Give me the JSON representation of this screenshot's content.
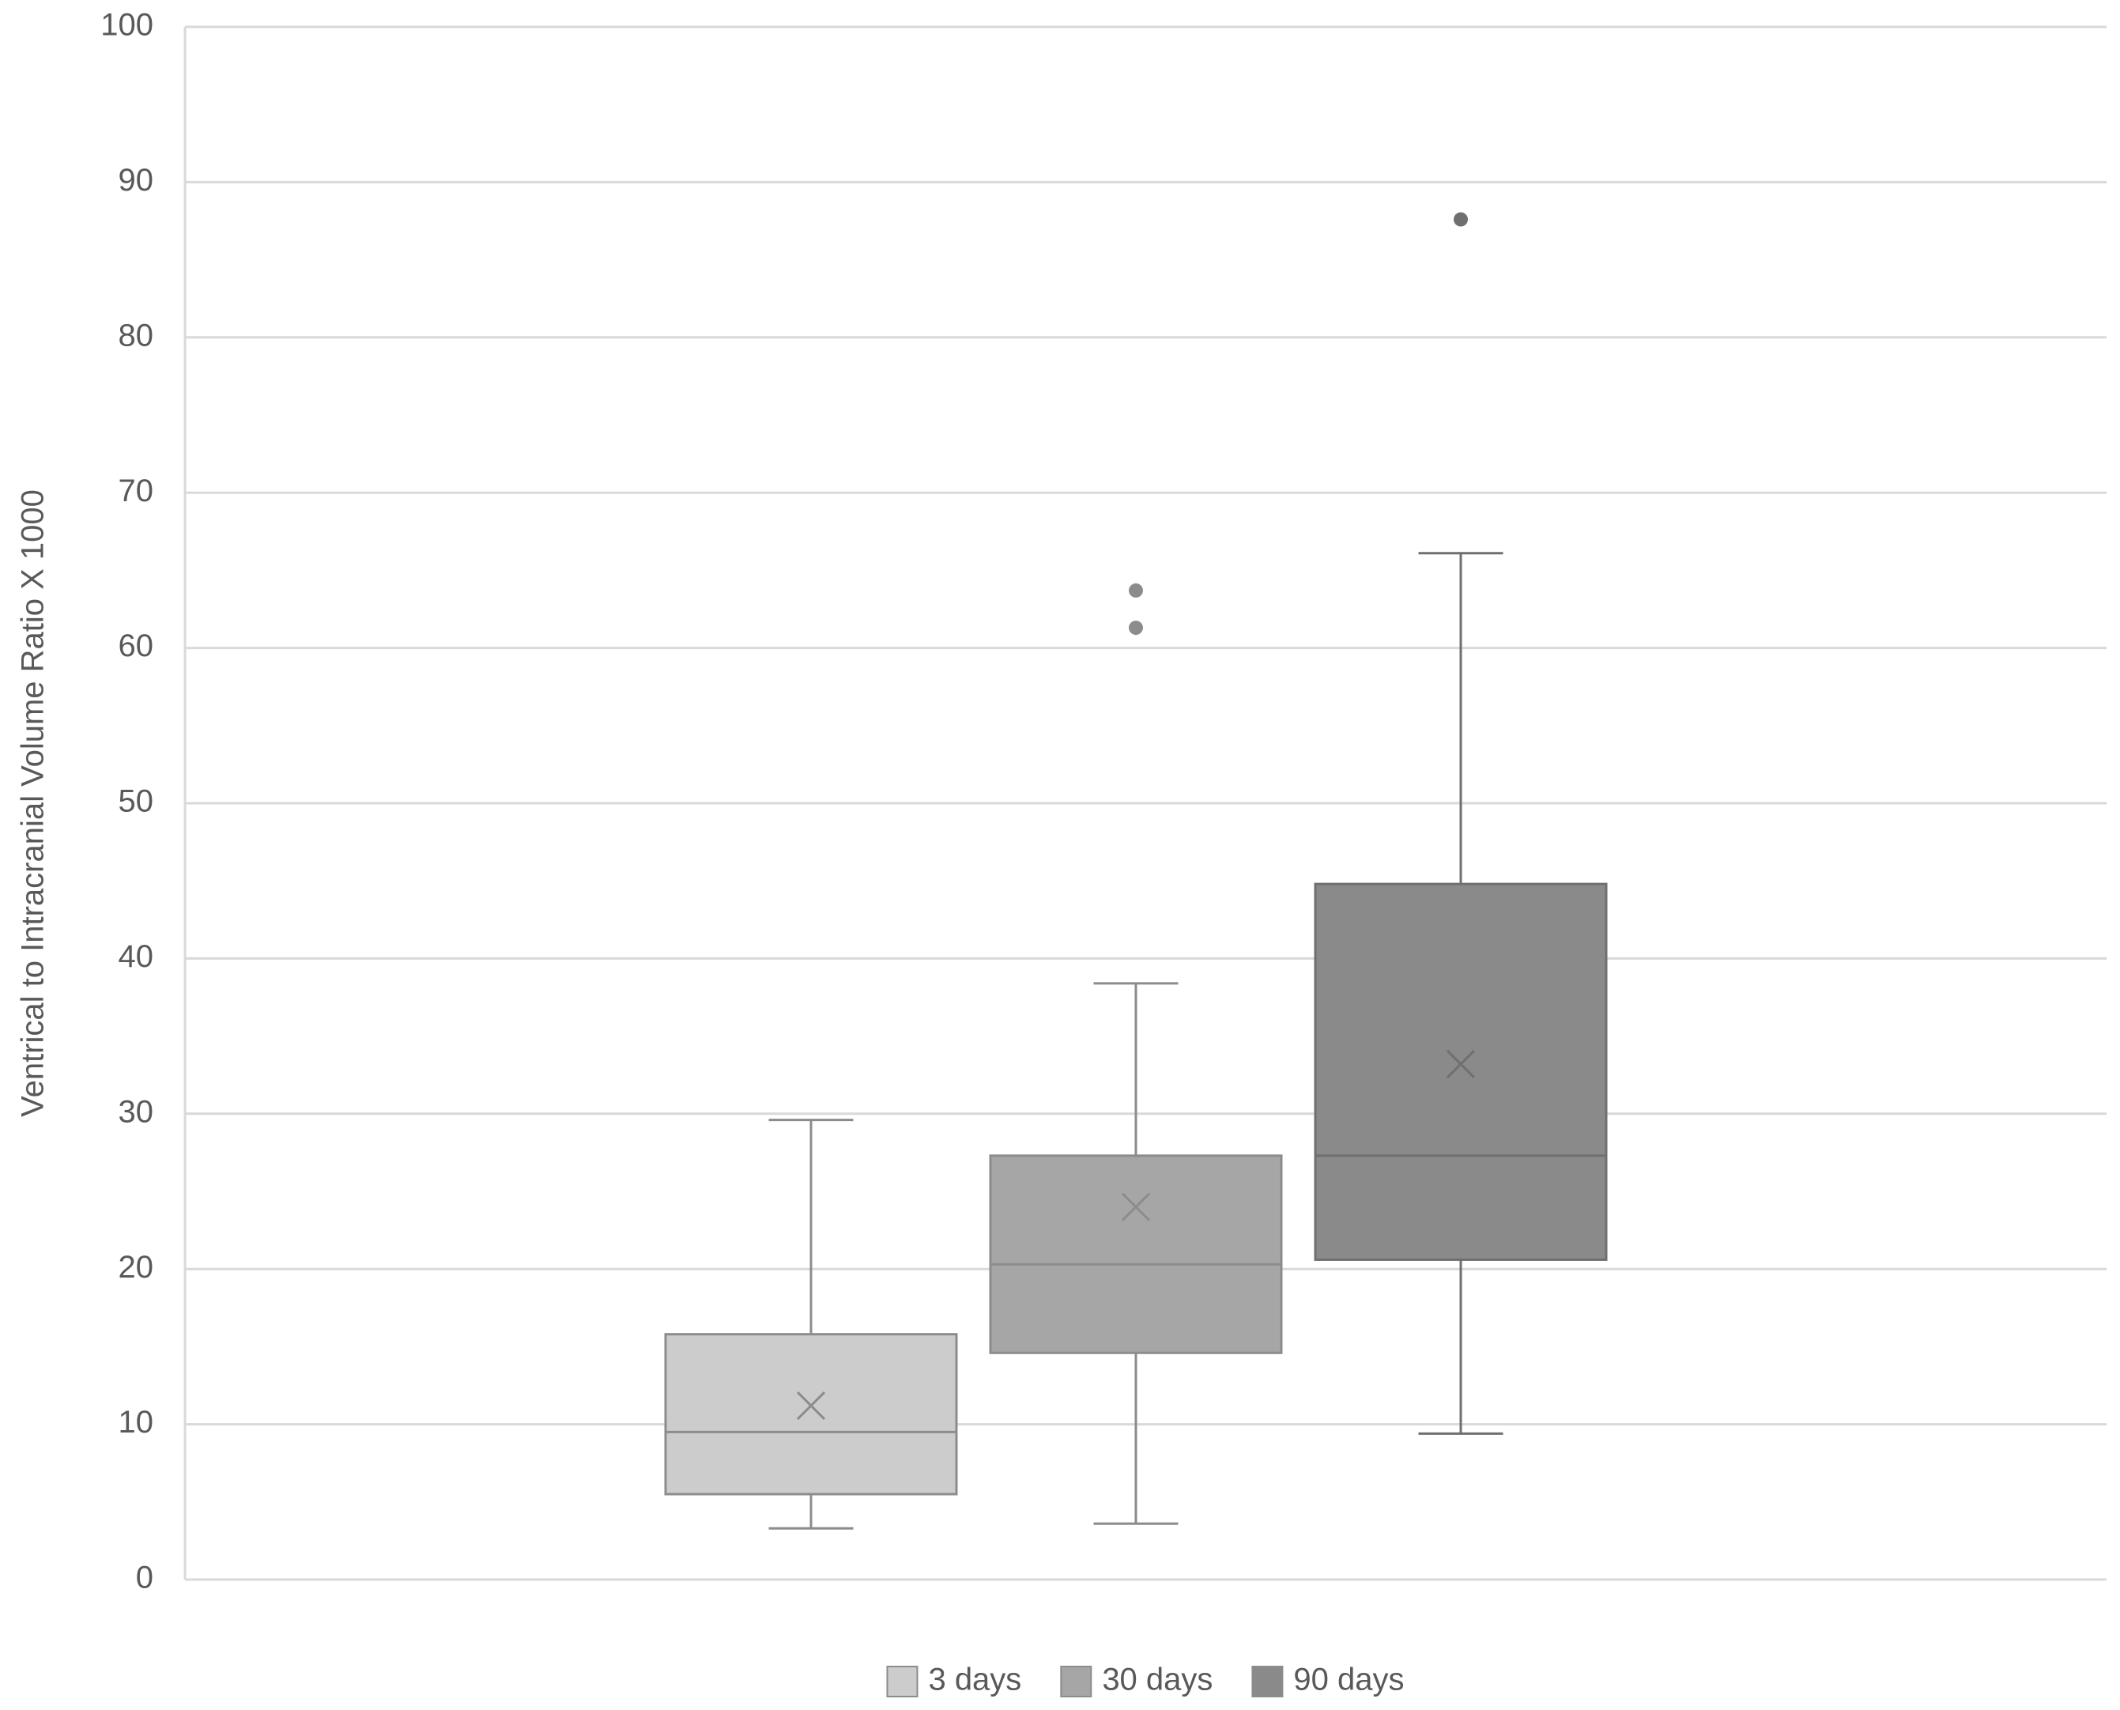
{
  "chart_data": {
    "type": "box",
    "y_label": "Ventrical to Intracranial Volume Ratio X 1000",
    "ylim": [
      0,
      100
    ],
    "yticks": [
      0,
      10,
      20,
      30,
      40,
      50,
      60,
      70,
      80,
      90,
      100
    ],
    "grid": true,
    "legend": "bottom",
    "series": [
      {
        "name": "3 days",
        "color": "#cccccc",
        "min": 3.3,
        "q1": 5.5,
        "median": 9.5,
        "q3": 15.8,
        "max": 29.6,
        "mean": 11.2,
        "outliers": []
      },
      {
        "name": "30 days",
        "color": "#a6a6a6",
        "min": 3.6,
        "q1": 14.6,
        "median": 20.3,
        "q3": 27.3,
        "max": 38.4,
        "mean": 24.0,
        "outliers": [
          63.7,
          61.3
        ]
      },
      {
        "name": "90 days",
        "color": "#8a8a8a",
        "min": 9.4,
        "q1": 20.6,
        "median": 27.3,
        "q3": 44.8,
        "max": 66.1,
        "mean": 33.2,
        "outliers": [
          87.6
        ]
      }
    ]
  }
}
